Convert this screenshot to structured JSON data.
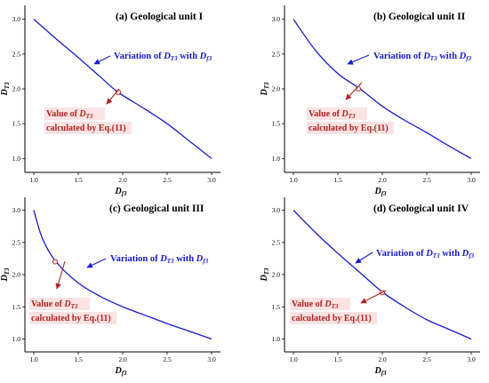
{
  "chart_data": [
    {
      "type": "line",
      "title": "(a) Geological unit I",
      "xlabel": "D_f3",
      "ylabel": "D_T3",
      "xlim": [
        0.9,
        3.1
      ],
      "ylim": [
        0.8,
        3.2
      ],
      "xticks": [
        "1.0",
        "1.5",
        "2.0",
        "2.5",
        "3.0"
      ],
      "yticks": [
        "1.0",
        "1.5",
        "2.0",
        "2.5",
        "3.0"
      ],
      "series": [
        {
          "x": [
            1.0,
            1.25,
            1.5,
            1.75,
            1.95,
            2.25,
            2.5,
            2.75,
            3.0
          ],
          "y": [
            3.0,
            2.72,
            2.45,
            2.17,
            1.95,
            1.71,
            1.5,
            1.25,
            1.0
          ]
        }
      ],
      "point": {
        "x": 1.95,
        "y": 1.95
      },
      "variation_label": {
        "prefix": "Variation of ",
        "var1": "D",
        "sub1": "T3",
        "mid": " with ",
        "var2": "D",
        "sub2": "f3"
      },
      "value_label": {
        "prefix": "Value of ",
        "var": "D",
        "sub": "T3",
        "line2": "calculated by Eq.(11)"
      }
    },
    {
      "type": "line",
      "title": "(b) Geological unit II",
      "xlabel": "D_f3",
      "ylabel": "D_T3",
      "xlim": [
        0.9,
        3.1
      ],
      "ylim": [
        0.8,
        3.2
      ],
      "xticks": [
        "1.0",
        "1.5",
        "2.0",
        "2.5",
        "3.0"
      ],
      "yticks": [
        "1.0",
        "1.5",
        "2.0",
        "2.5",
        "3.0"
      ],
      "series": [
        {
          "x": [
            1.0,
            1.25,
            1.5,
            1.75,
            2.0,
            2.25,
            2.5,
            2.75,
            3.0
          ],
          "y": [
            3.0,
            2.55,
            2.22,
            2.0,
            1.75,
            1.55,
            1.37,
            1.18,
            1.0
          ]
        }
      ],
      "point": {
        "x": 1.73,
        "y": 2.0
      },
      "variation_label": {
        "prefix": "Variation of ",
        "var1": "D",
        "sub1": "T3",
        "mid": " with ",
        "var2": "D",
        "sub2": "f3"
      },
      "value_label": {
        "prefix": "Value of ",
        "var": "D",
        "sub": "T3",
        "line2": "calculated by Eq.(11)"
      }
    },
    {
      "type": "line",
      "title": "(c) Geological unit III",
      "xlabel": "D_f3",
      "ylabel": "D_T3",
      "xlim": [
        0.9,
        3.1
      ],
      "ylim": [
        0.8,
        3.2
      ],
      "xticks": [
        "1.0",
        "1.5",
        "2.0",
        "2.5",
        "3.0"
      ],
      "yticks": [
        "1.0",
        "1.5",
        "2.0",
        "2.5",
        "3.0"
      ],
      "series": [
        {
          "x": [
            1.0,
            1.1,
            1.25,
            1.5,
            1.75,
            2.0,
            2.25,
            2.5,
            2.75,
            3.0
          ],
          "y": [
            3.0,
            2.55,
            2.2,
            1.87,
            1.66,
            1.5,
            1.37,
            1.24,
            1.12,
            1.0
          ]
        }
      ],
      "point": {
        "x": 1.24,
        "y": 2.2
      },
      "variation_label": {
        "prefix": "Variation of ",
        "var1": "D",
        "sub1": "T3",
        "mid": " with ",
        "var2": "D",
        "sub2": "f3"
      },
      "value_label": {
        "prefix": "Value of ",
        "var": "D",
        "sub": "T3",
        "line2": "calculated by Eq.(11)"
      }
    },
    {
      "type": "line",
      "title": "(d) Geological unit IV",
      "xlabel": "D_f3",
      "ylabel": "D_T3",
      "xlim": [
        0.9,
        3.1
      ],
      "ylim": [
        0.8,
        3.2
      ],
      "xticks": [
        "1.0",
        "1.5",
        "2.0",
        "2.5",
        "3.0"
      ],
      "yticks": [
        "1.0",
        "1.5",
        "2.0",
        "2.5",
        "3.0"
      ],
      "series": [
        {
          "x": [
            1.0,
            1.25,
            1.5,
            1.75,
            2.0,
            2.25,
            2.5,
            2.75,
            3.0
          ],
          "y": [
            3.0,
            2.65,
            2.33,
            2.03,
            1.73,
            1.5,
            1.3,
            1.15,
            1.0
          ]
        }
      ],
      "point": {
        "x": 2.0,
        "y": 1.72
      },
      "variation_label": {
        "prefix": "Variation of ",
        "var1": "D",
        "sub1": "T3",
        "mid": " with ",
        "var2": "D",
        "sub2": "f3"
      },
      "value_label": {
        "prefix": "Value of ",
        "var": "D",
        "sub": "T3",
        "line2": "calculated by Eq.(11)"
      }
    }
  ]
}
